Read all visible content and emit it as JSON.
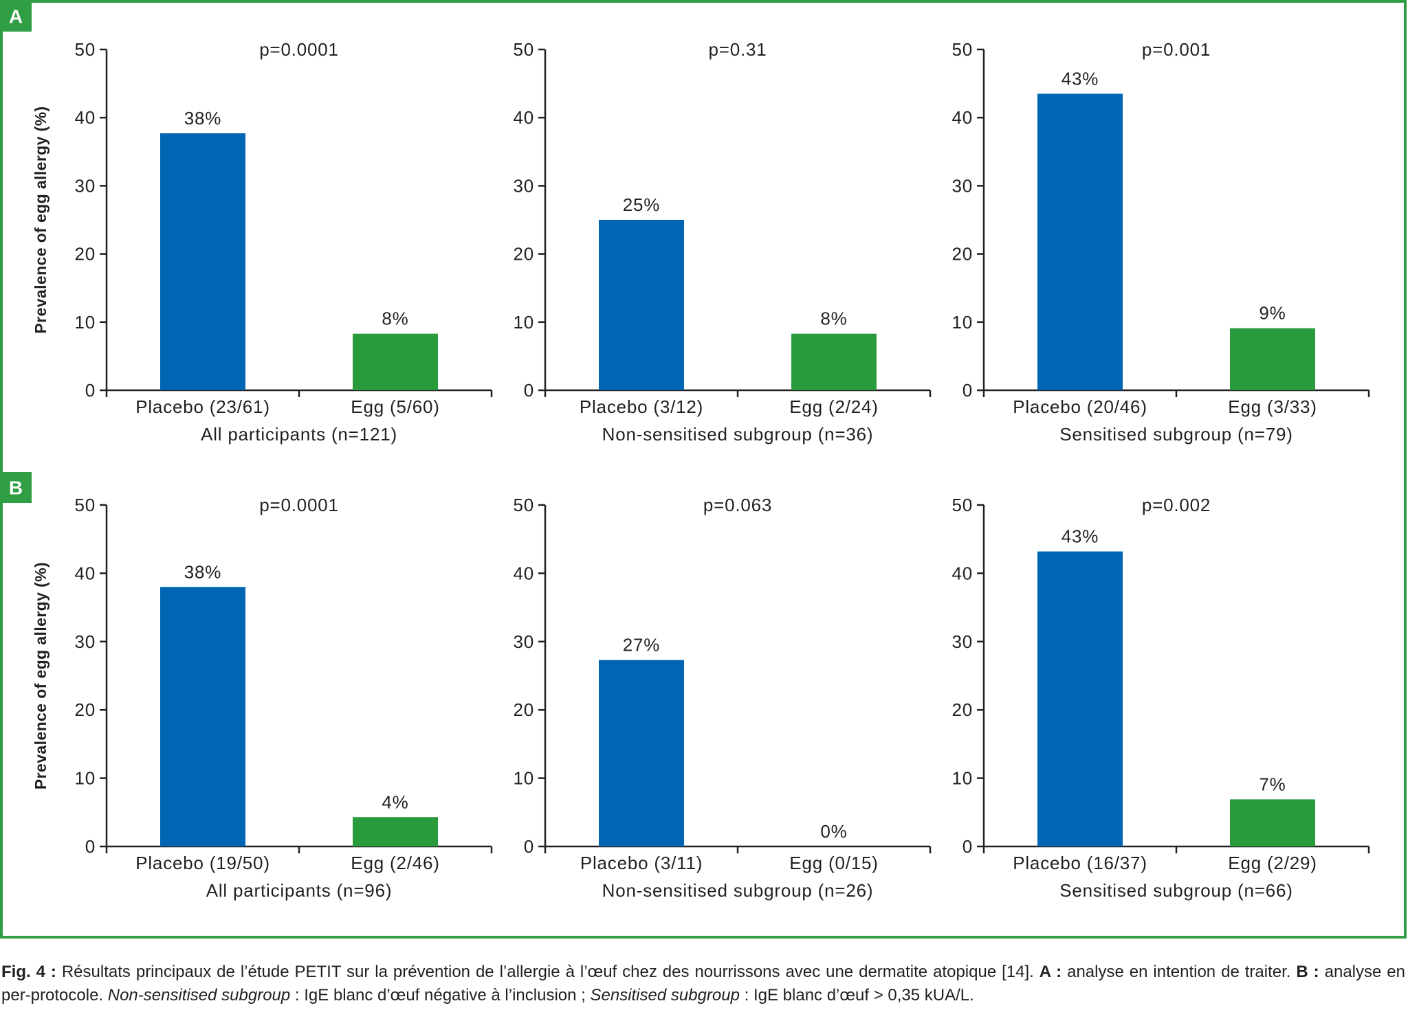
{
  "colors": {
    "placebo": "#0066b3",
    "egg": "#2a9b3c",
    "axis": "#231f20",
    "frame": "#2f9e44"
  },
  "panels": [
    {
      "label": "A"
    },
    {
      "label": "B"
    }
  ],
  "chart_data": [
    {
      "type": "bar",
      "categories": [
        "Placebo (23/61)",
        "Egg (5/60)"
      ],
      "values": [
        37.7,
        8.3
      ],
      "data_labels": [
        "38%",
        "8%"
      ],
      "annotation": "p=0.0001",
      "xlabel": "All participants (n=121)",
      "ylabel": "Prevalence of egg allergy (%)",
      "ylim": [
        0,
        50
      ],
      "yticks": [
        0,
        10,
        20,
        30,
        40,
        50
      ],
      "grid": false
    },
    {
      "type": "bar",
      "categories": [
        "Placebo (3/12)",
        "Egg (2/24)"
      ],
      "values": [
        25,
        8.3
      ],
      "data_labels": [
        "25%",
        "8%"
      ],
      "annotation": "p=0.31",
      "xlabel": "Non-sensitised subgroup (n=36)",
      "ylim": [
        0,
        50
      ],
      "yticks": [
        0,
        10,
        20,
        30,
        40,
        50
      ],
      "grid": false
    },
    {
      "type": "bar",
      "categories": [
        "Placebo (20/46)",
        "Egg (3/33)"
      ],
      "values": [
        43.5,
        9.1
      ],
      "data_labels": [
        "43%",
        "9%"
      ],
      "annotation": "p=0.001",
      "xlabel": "Sensitised subgroup (n=79)",
      "ylim": [
        0,
        50
      ],
      "yticks": [
        0,
        10,
        20,
        30,
        40,
        50
      ],
      "grid": false
    },
    {
      "type": "bar",
      "categories": [
        "Placebo (19/50)",
        "Egg (2/46)"
      ],
      "values": [
        38,
        4.3
      ],
      "data_labels": [
        "38%",
        "4%"
      ],
      "annotation": "p=0.0001",
      "xlabel": "All participants (n=96)",
      "ylabel": "Prevalence of egg allergy (%)",
      "ylim": [
        0,
        50
      ],
      "yticks": [
        0,
        10,
        20,
        30,
        40,
        50
      ],
      "grid": false
    },
    {
      "type": "bar",
      "categories": [
        "Placebo (3/11)",
        "Egg (0/15)"
      ],
      "values": [
        27.3,
        0
      ],
      "data_labels": [
        "27%",
        "0%"
      ],
      "annotation": "p=0.063",
      "xlabel": "Non-sensitised subgroup (n=26)",
      "ylim": [
        0,
        50
      ],
      "yticks": [
        0,
        10,
        20,
        30,
        40,
        50
      ],
      "grid": false
    },
    {
      "type": "bar",
      "categories": [
        "Placebo (16/37)",
        "Egg (2/29)"
      ],
      "values": [
        43.2,
        6.9
      ],
      "data_labels": [
        "43%",
        "7%"
      ],
      "annotation": "p=0.002",
      "xlabel": "Sensitised subgroup (n=66)",
      "ylim": [
        0,
        50
      ],
      "yticks": [
        0,
        10,
        20,
        30,
        40,
        50
      ],
      "grid": false
    }
  ],
  "caption": {
    "fig_label": "Fig. 4 :",
    "text1": " Résultats principaux de l’étude PETIT sur la prévention de l’allergie à l’œuf chez des nourrissons avec une dermatite atopique [14]. ",
    "a_label": "A :",
    "text2": " analyse en intention de traiter. ",
    "b_label": "B :",
    "text3": " analyse en per-protocole. ",
    "ns_term": "Non-sensitised subgroup",
    "text4": " : IgE blanc d’œuf négative à l’inclusion ; ",
    "s_term": "Sensitised subgroup",
    "text5": " : IgE blanc d’œuf > 0,35 kUA/L."
  }
}
